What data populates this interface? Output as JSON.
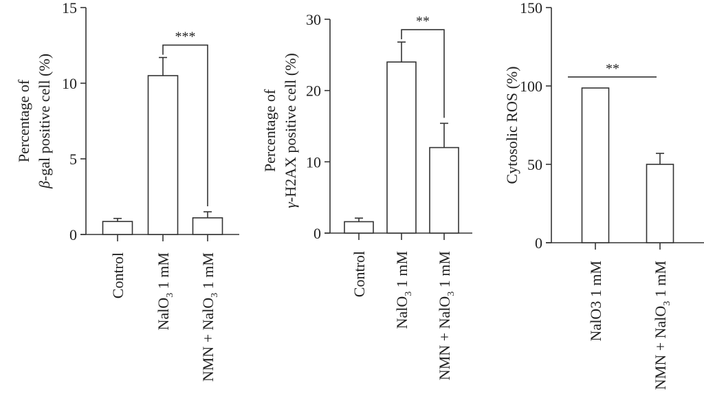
{
  "chart_data": [
    {
      "type": "bar",
      "title": "",
      "xlabel": "",
      "ylabel_line1": "Percentage of",
      "ylabel_line2_greek": "β",
      "ylabel_line2_rest": "-gal positive cell (%)",
      "ylabel": "Percentage of β-gal positive cell (%)",
      "ylim": [
        0,
        15
      ],
      "yticks": [
        0,
        5,
        10,
        15
      ],
      "categories": [
        "Control",
        "NalO3 1 mM",
        "NMN + NalO3 1 mM"
      ],
      "category_labels": [
        {
          "main": "Control",
          "sub": "",
          "tail": ""
        },
        {
          "main": "NalO",
          "sub": "3",
          "tail": " 1 mM"
        },
        {
          "main": "NMN + NalO",
          "sub": "3",
          "tail": " 1 mM"
        }
      ],
      "values": [
        0.86,
        10.5,
        1.1
      ],
      "errors": [
        0.2,
        1.2,
        0.4
      ],
      "significance": {
        "from": 1,
        "to": 2,
        "label": "***",
        "style": "bracket"
      },
      "grid": false
    },
    {
      "type": "bar",
      "title": "",
      "xlabel": "",
      "ylabel_line1": "Percentage of",
      "ylabel_line2_greek": "γ",
      "ylabel_line2_rest": "-H2AX positive cell (%)",
      "ylabel": "Percentage of γ-H2AX positive cell (%)",
      "ylim": [
        0,
        30
      ],
      "yticks": [
        0,
        10,
        20,
        30
      ],
      "categories": [
        "Control",
        "NalO3 1 mM",
        "NMN + NalO3 1 mM"
      ],
      "category_labels": [
        {
          "main": "Control",
          "sub": "",
          "tail": ""
        },
        {
          "main": "NalO",
          "sub": "3",
          "tail": " 1 mM"
        },
        {
          "main": "NMN + NalO",
          "sub": "3",
          "tail": " 1 mM"
        }
      ],
      "values": [
        1.6,
        24.0,
        12.0
      ],
      "errors": [
        0.5,
        2.8,
        3.4
      ],
      "significance": {
        "from": 1,
        "to": 2,
        "label": "**",
        "style": "bracket"
      },
      "grid": false
    },
    {
      "type": "bar",
      "title": "",
      "xlabel": "",
      "ylabel_line1": "",
      "ylabel_line2_greek": "",
      "ylabel_line2_rest": "Cytosolic ROS (%)",
      "ylabel": "Cytosolic ROS (%)",
      "ylim": [
        0,
        150
      ],
      "yticks": [
        0,
        50,
        100,
        150
      ],
      "categories": [
        "NalO3 1 mM",
        "NMN + NalO3 1 mM"
      ],
      "category_labels": [
        {
          "main": "NalO3 1 mM",
          "sub": "",
          "tail": ""
        },
        {
          "main": "NMN + NalO",
          "sub": "3",
          "tail": " 1 mM"
        }
      ],
      "values": [
        98.7,
        50.0
      ],
      "errors": [
        0,
        7.0
      ],
      "significance": {
        "from": 0,
        "to": 1,
        "label": "**",
        "style": "line"
      },
      "grid": false
    }
  ]
}
